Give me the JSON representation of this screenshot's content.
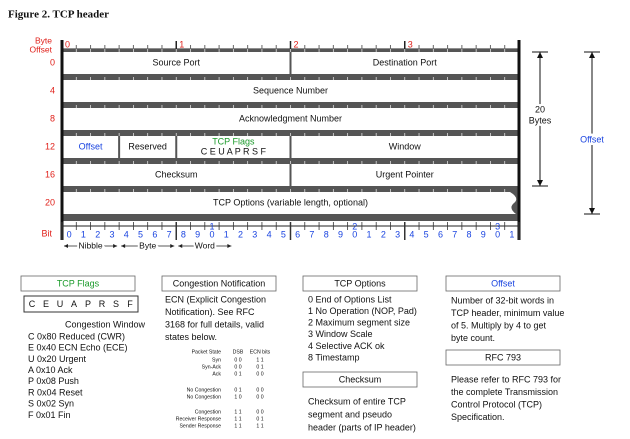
{
  "title": "Figure 2. TCP header",
  "diagram": {
    "byte_offset_label": [
      "Byte",
      "Offset"
    ],
    "bytes": [
      "0",
      "1",
      "2",
      "3"
    ],
    "rows": [
      {
        "offset": "0",
        "fields": [
          "Source Port",
          "Destination Port"
        ]
      },
      {
        "offset": "4",
        "fields": [
          "Sequence Number"
        ]
      },
      {
        "offset": "8",
        "fields": [
          "Acknowledgment Number"
        ]
      },
      {
        "offset": "12",
        "fields": [
          "Offset",
          "Reserved",
          "TCP Flags",
          "Window"
        ],
        "flag_letters": "C  E  U  A  P  R  S  F"
      },
      {
        "offset": "16",
        "fields": [
          "Checksum",
          "Urgent Pointer"
        ]
      },
      {
        "offset": "20",
        "fields": [
          "TCP Options (variable length, optional)"
        ]
      }
    ],
    "bit_label": "Bit",
    "bit_units": [
      "0",
      "1",
      "2",
      "3",
      "4",
      "5",
      "6",
      "7",
      "8",
      "9",
      "0",
      "1",
      "2",
      "3",
      "4",
      "5",
      "6",
      "7",
      "8",
      "9",
      "0",
      "1",
      "2",
      "3",
      "4",
      "5",
      "6",
      "7",
      "8",
      "9",
      "0",
      "1"
    ],
    "bit_tens": [
      "1",
      "2",
      "3"
    ],
    "spans": [
      "Nibble",
      "Byte",
      "Word"
    ],
    "size_label": [
      "20",
      "Bytes"
    ],
    "offset_label": "Offset"
  },
  "panels": {
    "flags": {
      "header": "TCP Flags",
      "letters": [
        "C",
        "E",
        "U",
        "A",
        "P",
        "R",
        "S",
        "F"
      ],
      "caption": "Congestion Window",
      "items": [
        "C 0x80 Reduced (CWR)",
        "E 0x40 ECN Echo (ECE)",
        "U 0x20 Urgent",
        "A 0x10 Ack",
        "P 0x08 Push",
        "R 0x04 Reset",
        "S 0x02 Syn",
        "F 0x01 Fin"
      ]
    },
    "congestion": {
      "header": "Congestion Notification",
      "lines": [
        "ECN (Explicit Congestion",
        "Notification).  See RFC",
        "3168 for full details, valid",
        "states below."
      ],
      "table_header": [
        "Packet State",
        "DSB",
        "ECN bits"
      ],
      "table_rows": [
        [
          "Syn",
          "0 0",
          "1 1"
        ],
        [
          "Syn-Ack",
          "0 0",
          "0 1"
        ],
        [
          "Ack",
          "0 1",
          "0 0"
        ],
        [
          "No Congestion",
          "0 1",
          "0 0"
        ],
        [
          "No Congestion",
          "1 0",
          "0 0"
        ],
        [
          "Congestion",
          "1 1",
          "0 0"
        ],
        [
          "Receiver Response",
          "1 1",
          "0 1"
        ],
        [
          "Sender Response",
          "1 1",
          "1 1"
        ]
      ]
    },
    "options": {
      "header": "TCP Options",
      "items": [
        "0 End of Options List",
        "1 No Operation (NOP, Pad)",
        "2 Maximum segment size",
        "3 Window Scale",
        "4 Selective ACK ok",
        "8 Timestamp"
      ]
    },
    "checksum": {
      "header": "Checksum",
      "lines": [
        "Checksum of entire TCP",
        "segment and pseudo",
        "header (parts of IP header)"
      ]
    },
    "offset": {
      "header": "Offset",
      "lines": [
        "Number of 32-bit words in",
        "TCP header, minimum value",
        "of 5.  Multiply by 4 to get",
        "byte count."
      ]
    },
    "rfc": {
      "header": "RFC 793",
      "lines": [
        "Please refer to RFC 793 for",
        "the complete Transmission",
        "Control Protocol (TCP)",
        "Specification."
      ]
    }
  }
}
